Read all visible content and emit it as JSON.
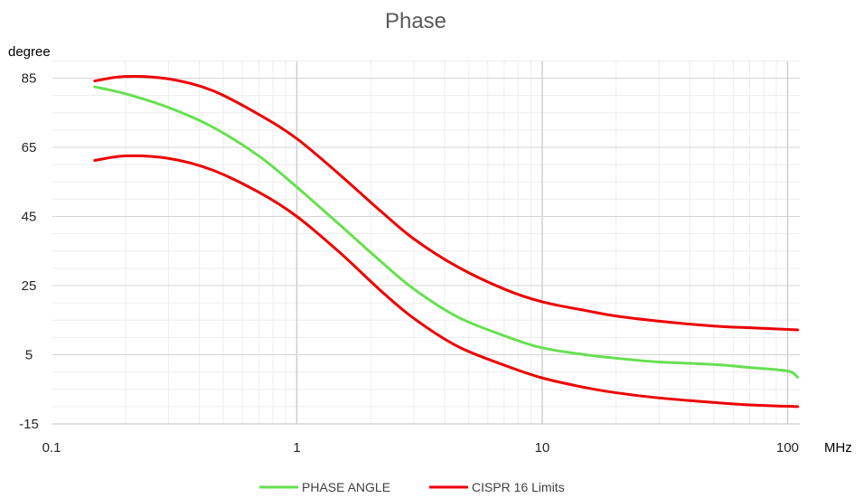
{
  "chart_data": {
    "type": "line",
    "title": "Phase",
    "ylabel": "degree",
    "xlabel": "MHz",
    "x_scale": "log",
    "xlim": [
      0.1,
      110
    ],
    "ylim": [
      -15,
      90
    ],
    "x_ticks": [
      {
        "value": 0.1,
        "label": "0.1"
      },
      {
        "value": 1,
        "label": "1"
      },
      {
        "value": 10,
        "label": "10"
      },
      {
        "value": 100,
        "label": "100"
      }
    ],
    "y_ticks": [
      {
        "value": -15,
        "label": "-15"
      },
      {
        "value": 5,
        "label": "5"
      },
      {
        "value": 25,
        "label": "25"
      },
      {
        "value": 45,
        "label": "45"
      },
      {
        "value": 65,
        "label": "65"
      },
      {
        "value": 85,
        "label": "85"
      }
    ],
    "grid": true,
    "legend": "bottom",
    "legend_items": [
      {
        "label": "PHASE ANGLE",
        "color": "#66e050"
      },
      {
        "label": "CISPR 16 Limits",
        "color": "#ee0000"
      }
    ],
    "series": [
      {
        "name": "PHASE ANGLE",
        "color": "#66e050",
        "x": [
          0.15,
          0.2,
          0.3,
          0.45,
          0.7,
          1.0,
          1.5,
          2.2,
          3.0,
          4.5,
          7.0,
          10,
          15,
          20,
          30,
          50,
          70,
          100,
          110
        ],
        "y": [
          82.5,
          80.5,
          76.5,
          71,
          62.5,
          53.5,
          42.5,
          32,
          24,
          16,
          10.5,
          7,
          5,
          4,
          2.9,
          2.2,
          1.3,
          0.3,
          -1.5
        ]
      },
      {
        "name": "CISPR 16 Limits (upper)",
        "color": "#ee0000",
        "x": [
          0.15,
          0.2,
          0.3,
          0.45,
          0.7,
          1.0,
          1.5,
          2.2,
          3.0,
          4.5,
          7.0,
          10,
          15,
          20,
          30,
          50,
          70,
          110
        ],
        "y": [
          84.2,
          85.5,
          84.8,
          81.5,
          74.5,
          67.5,
          57,
          46.5,
          38.5,
          30.5,
          24,
          20.3,
          17.8,
          16.2,
          14.7,
          13.3,
          12.8,
          12.2
        ]
      },
      {
        "name": "CISPR 16 Limits (lower)",
        "color": "#ee0000",
        "x": [
          0.15,
          0.2,
          0.3,
          0.45,
          0.7,
          1.0,
          1.5,
          2.2,
          3.0,
          4.5,
          7.0,
          10,
          15,
          20,
          30,
          50,
          70,
          110
        ],
        "y": [
          61.2,
          62.5,
          61.8,
          58.5,
          52,
          45,
          34.5,
          23.5,
          15.5,
          7.5,
          2,
          -1.7,
          -4.5,
          -6,
          -7.5,
          -8.8,
          -9.5,
          -10
        ]
      }
    ]
  }
}
